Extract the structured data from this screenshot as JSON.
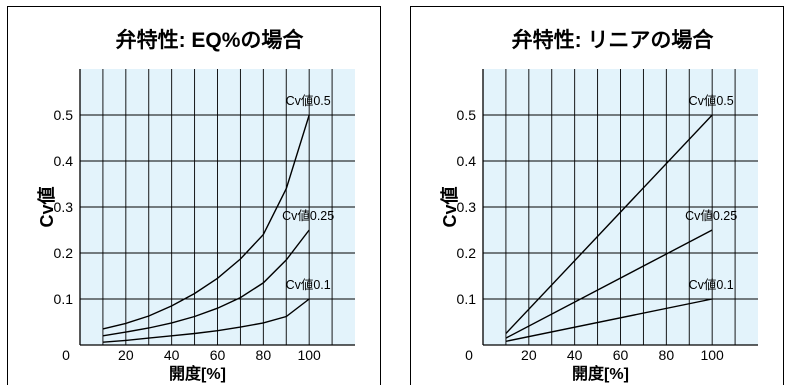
{
  "colors": {
    "plot_bg": "#e3f3fb",
    "grid": "#000000",
    "line": "#000000"
  },
  "chart_data": [
    {
      "type": "line",
      "title": "弁特性: EQ%の場合",
      "xlabel": "開度[%]",
      "ylabel": "Cv値",
      "x_origin_label": "0",
      "xticks": [
        20,
        40,
        60,
        80,
        100
      ],
      "yticks": [
        0.1,
        0.2,
        0.3,
        0.4,
        0.5
      ],
      "xlim": [
        0,
        120
      ],
      "ylim": [
        0,
        0.6
      ],
      "grid": true,
      "series": [
        {
          "name": "Cv値0.5",
          "x": [
            10,
            20,
            30,
            40,
            50,
            60,
            70,
            80,
            90,
            100
          ],
          "values": [
            0.035,
            0.047,
            0.063,
            0.085,
            0.112,
            0.145,
            0.187,
            0.24,
            0.34,
            0.5
          ]
        },
        {
          "name": "Cv値0.25",
          "x": [
            10,
            20,
            30,
            40,
            50,
            60,
            70,
            80,
            90,
            100
          ],
          "values": [
            0.02,
            0.028,
            0.037,
            0.048,
            0.062,
            0.08,
            0.103,
            0.135,
            0.185,
            0.25
          ]
        },
        {
          "name": "Cv値0.1",
          "x": [
            10,
            20,
            30,
            40,
            50,
            60,
            70,
            80,
            90,
            100
          ],
          "values": [
            0.006,
            0.01,
            0.015,
            0.02,
            0.025,
            0.031,
            0.039,
            0.048,
            0.062,
            0.1
          ]
        }
      ]
    },
    {
      "type": "line",
      "title": "弁特性: リニアの場合",
      "xlabel": "開度[%]",
      "ylabel": "Cv値",
      "x_origin_label": "0",
      "xticks": [
        20,
        40,
        60,
        80,
        100
      ],
      "yticks": [
        0.1,
        0.2,
        0.3,
        0.4,
        0.5
      ],
      "xlim": [
        0,
        120
      ],
      "ylim": [
        0,
        0.6
      ],
      "grid": true,
      "series": [
        {
          "name": "Cv値0.5",
          "x": [
            10,
            100
          ],
          "values": [
            0.025,
            0.5
          ]
        },
        {
          "name": "Cv値0.25",
          "x": [
            10,
            100
          ],
          "values": [
            0.015,
            0.25
          ]
        },
        {
          "name": "Cv値0.1",
          "x": [
            10,
            100
          ],
          "values": [
            0.008,
            0.1
          ]
        }
      ]
    }
  ]
}
